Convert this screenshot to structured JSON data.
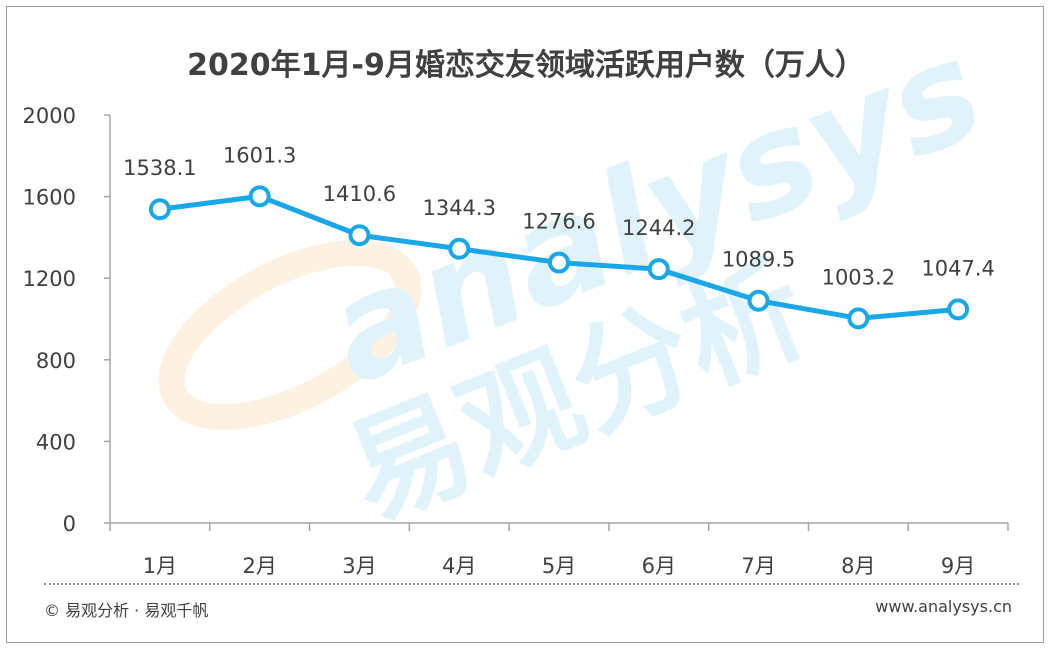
{
  "chart_data": {
    "type": "line",
    "title": "2020年1月-9月婚恋交友领域活跃用户数（万人）",
    "categories": [
      "1月",
      "2月",
      "3月",
      "4月",
      "5月",
      "6月",
      "7月",
      "8月",
      "9月"
    ],
    "series": [
      {
        "values": [
          1538.1,
          1601.3,
          1410.6,
          1344.3,
          1276.6,
          1244.2,
          1089.5,
          1003.2,
          1047.4
        ],
        "labels": [
          "1538.1",
          "1601.3",
          "1410.6",
          "1344.3",
          "1276.6",
          "1244.2",
          "1089.5",
          "1003.2",
          "1047.4"
        ],
        "color": "#1aa7e8"
      }
    ],
    "ylim": [
      0,
      2000
    ],
    "yticks": [
      "0",
      "400",
      "800",
      "1200",
      "1600",
      "2000"
    ],
    "grid": false,
    "legend": "none"
  },
  "footer": {
    "source": "© 易观分析 · 易观千帆",
    "website": "www.analysys.cn"
  },
  "watermark": {
    "logo_text": "analysys",
    "cn_text": "易观分析"
  },
  "colors": {
    "line": "#1aa7e8",
    "marker_fill": "#ffffff",
    "axis": "#a6a6a6",
    "text": "#404040"
  }
}
